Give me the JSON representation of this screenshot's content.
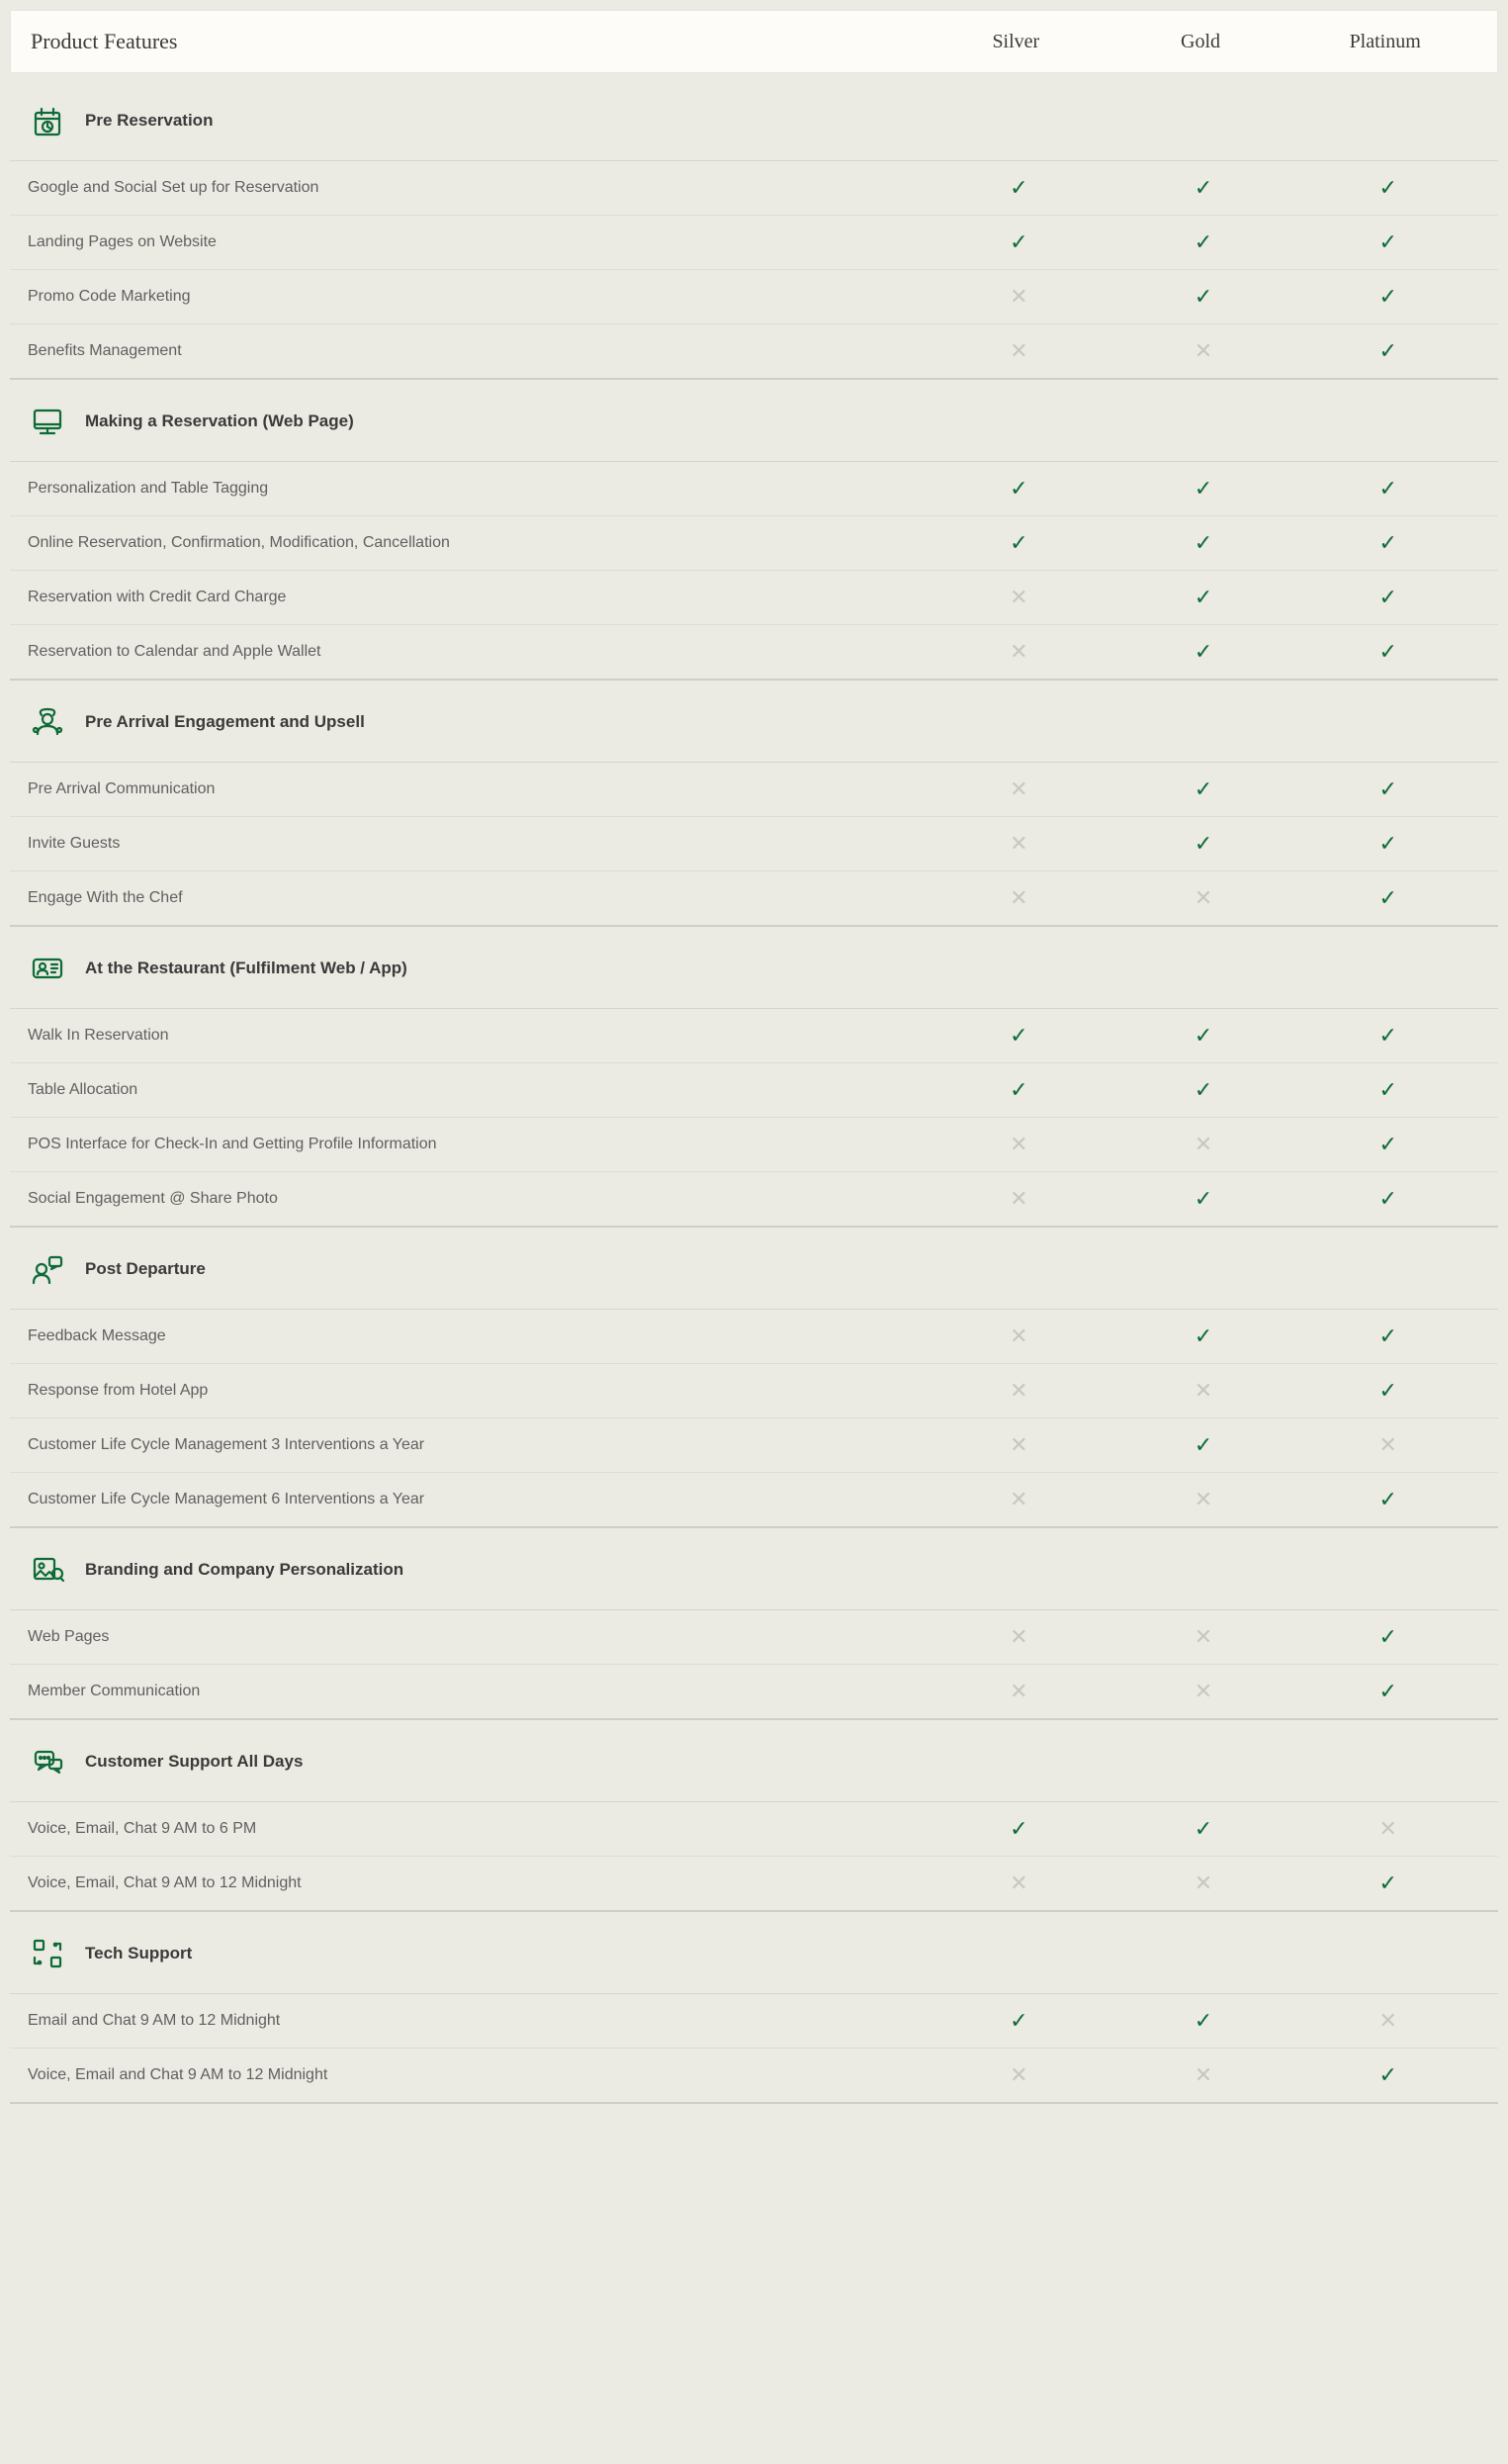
{
  "colors": {
    "accent": "#0d6b37",
    "bg": "#ebeae3",
    "header_bg": "#fdfcf8",
    "border": "#dedcd4",
    "text": "#525252",
    "text_dark": "#3a3a3a",
    "muted": "#c8c8c1"
  },
  "header": {
    "title": "Product Features",
    "plans": [
      "Silver",
      "Gold",
      "Platinum"
    ]
  },
  "sections": [
    {
      "icon": "calendar",
      "title": "Pre Reservation",
      "rows": [
        {
          "label": "Google and Social Set up for Reservation",
          "values": [
            true,
            true,
            true
          ]
        },
        {
          "label": "Landing Pages on Website",
          "values": [
            true,
            true,
            true
          ]
        },
        {
          "label": "Promo Code Marketing",
          "values": [
            false,
            true,
            true
          ]
        },
        {
          "label": "Benefits Management",
          "values": [
            false,
            false,
            true
          ]
        }
      ]
    },
    {
      "icon": "monitor",
      "title": "Making a Reservation (Web Page)",
      "rows": [
        {
          "label": "Personalization and Table Tagging",
          "values": [
            true,
            true,
            true
          ]
        },
        {
          "label": "Online Reservation, Confirmation, Modification, Cancellation",
          "values": [
            true,
            true,
            true
          ]
        },
        {
          "label": "Reservation with Credit Card Charge",
          "values": [
            false,
            true,
            true
          ]
        },
        {
          "label": "Reservation to Calendar and Apple Wallet",
          "values": [
            false,
            true,
            true
          ]
        }
      ]
    },
    {
      "icon": "chef",
      "title": "Pre Arrival Engagement and Upsell",
      "rows": [
        {
          "label": "Pre Arrival Communication",
          "values": [
            false,
            true,
            true
          ]
        },
        {
          "label": "Invite Guests",
          "values": [
            false,
            true,
            true
          ]
        },
        {
          "label": "Engage With the Chef",
          "values": [
            false,
            false,
            true
          ]
        }
      ]
    },
    {
      "icon": "id-card",
      "title": "At the Restaurant (Fulfilment Web / App)",
      "rows": [
        {
          "label": "Walk In Reservation",
          "values": [
            true,
            true,
            true
          ]
        },
        {
          "label": "Table Allocation",
          "values": [
            true,
            true,
            true
          ]
        },
        {
          "label": "POS Interface for Check-In and Getting Profile Information",
          "values": [
            false,
            false,
            true
          ]
        },
        {
          "label": "Social Engagement @ Share Photo",
          "values": [
            false,
            true,
            true
          ]
        }
      ]
    },
    {
      "icon": "user-chat",
      "title": "Post Departure",
      "rows": [
        {
          "label": "Feedback Message",
          "values": [
            false,
            true,
            true
          ]
        },
        {
          "label": "Response from Hotel App",
          "values": [
            false,
            false,
            true
          ]
        },
        {
          "label": "Customer Life Cycle Management 3 Interventions a Year",
          "values": [
            false,
            true,
            false
          ]
        },
        {
          "label": "Customer Life Cycle Management 6 Interventions a Year",
          "values": [
            false,
            false,
            true
          ]
        }
      ]
    },
    {
      "icon": "branding",
      "title": "Branding and Company Personalization",
      "rows": [
        {
          "label": "Web Pages",
          "values": [
            false,
            false,
            true
          ]
        },
        {
          "label": "Member Communication",
          "values": [
            false,
            false,
            true
          ]
        }
      ]
    },
    {
      "icon": "support",
      "title": "Customer Support All Days",
      "rows": [
        {
          "label": "Voice, Email, Chat 9 AM to 6 PM",
          "values": [
            true,
            true,
            false
          ]
        },
        {
          "label": "Voice, Email, Chat 9 AM to 12 Midnight",
          "values": [
            false,
            false,
            true
          ]
        }
      ]
    },
    {
      "icon": "tech",
      "title": "Tech Support",
      "rows": [
        {
          "label": "Email and Chat 9 AM to 12 Midnight",
          "values": [
            true,
            true,
            false
          ]
        },
        {
          "label": "Voice, Email and Chat 9 AM to 12 Midnight",
          "values": [
            false,
            false,
            true
          ]
        }
      ]
    }
  ]
}
